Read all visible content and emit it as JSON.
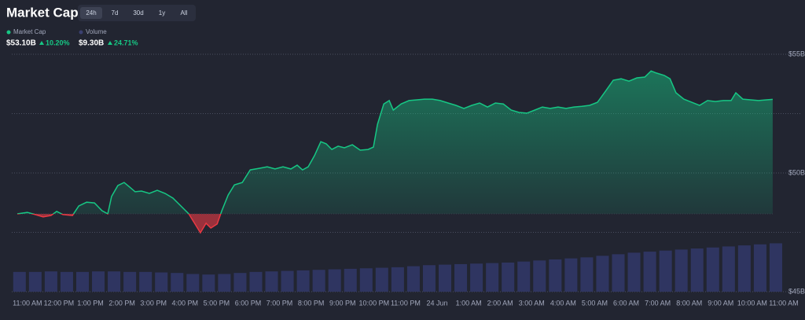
{
  "header": {
    "title": "Market Cap",
    "tabs": [
      "24h",
      "7d",
      "30d",
      "1y",
      "All"
    ],
    "legend": [
      {
        "label": "Market Cap",
        "value": "$53.10B",
        "change": "10.20%"
      },
      {
        "label": "Volume",
        "value": "$9.30B",
        "change": "24.71%"
      }
    ]
  },
  "chart_data": {
    "type": "area",
    "up_color": "#16c784",
    "down_color": "#ea3943",
    "grid": true,
    "series": [
      {
        "name": "Market Cap",
        "color": "#16c784",
        "x": [
          -0.32,
          0,
          0.25,
          0.5,
          0.75,
          0.93,
          1.13,
          1.43,
          1.63,
          1.88,
          2.13,
          2.37,
          2.55,
          2.67,
          2.87,
          3.07,
          3.25,
          3.42,
          3.62,
          3.87,
          4.12,
          4.37,
          4.62,
          4.87,
          5.12,
          5.32,
          5.49,
          5.67,
          5.82,
          6.02,
          6.17,
          6.37,
          6.57,
          6.82,
          7.07,
          7.37,
          7.61,
          7.86,
          8.11,
          8.36,
          8.56,
          8.73,
          8.91,
          9.11,
          9.31,
          9.48,
          9.66,
          9.86,
          10.06,
          10.31,
          10.56,
          10.81,
          10.98,
          11.11,
          11.31,
          11.48,
          11.61,
          11.86,
          12.11,
          12.36,
          12.6,
          12.85,
          13.1,
          13.35,
          13.6,
          13.85,
          14.1,
          14.35,
          14.6,
          14.85,
          15.1,
          15.35,
          15.6,
          15.85,
          16.1,
          16.34,
          16.59,
          16.84,
          17.09,
          17.34,
          17.59,
          17.84,
          18.09,
          18.34,
          18.59,
          18.84,
          19.09,
          19.34,
          19.59,
          19.79,
          19.96,
          20.21,
          20.39,
          20.58,
          20.83,
          21.08,
          21.33,
          21.58,
          21.83,
          22.08,
          22.33,
          22.48,
          22.7,
          22.95,
          23.2,
          23.45,
          23.65
        ],
        "values": [
          48.28,
          48.34,
          48.25,
          48.15,
          48.21,
          48.38,
          48.25,
          48.21,
          48.61,
          48.77,
          48.74,
          48.41,
          48.28,
          49.01,
          49.47,
          49.6,
          49.4,
          49.21,
          49.24,
          49.14,
          49.27,
          49.14,
          48.94,
          48.61,
          48.28,
          47.85,
          47.48,
          47.88,
          47.68,
          47.85,
          48.41,
          49.07,
          49.5,
          49.6,
          50.13,
          50.2,
          50.26,
          50.17,
          50.26,
          50.17,
          50.33,
          50.13,
          50.26,
          50.73,
          51.32,
          51.23,
          50.99,
          51.13,
          51.06,
          51.19,
          50.96,
          50.99,
          51.09,
          52.05,
          52.91,
          53.05,
          52.65,
          52.91,
          53.05,
          53.08,
          53.11,
          53.11,
          53.05,
          52.95,
          52.85,
          52.72,
          52.85,
          52.95,
          52.78,
          52.95,
          52.91,
          52.65,
          52.55,
          52.52,
          52.65,
          52.78,
          52.72,
          52.78,
          52.72,
          52.78,
          52.81,
          52.85,
          52.98,
          53.44,
          53.91,
          53.97,
          53.87,
          54.01,
          54.04,
          54.3,
          54.21,
          54.11,
          53.97,
          53.38,
          53.11,
          52.98,
          52.85,
          53.05,
          53.01,
          53.05,
          53.05,
          53.38,
          53.11,
          53.08,
          53.05,
          53.08,
          53.1
        ]
      },
      {
        "name": "Volume",
        "color": "#2f3561",
        "axis": "y2",
        "x": [
          -0.25,
          0.25,
          0.75,
          1.25,
          1.75,
          2.25,
          2.75,
          3.25,
          3.75,
          4.25,
          4.75,
          5.25,
          5.75,
          6.25,
          6.75,
          7.25,
          7.75,
          8.25,
          8.75,
          9.25,
          9.75,
          10.25,
          10.75,
          11.25,
          11.75,
          12.25,
          12.75,
          13.25,
          13.75,
          14.25,
          14.75,
          15.25,
          15.75,
          16.25,
          16.75,
          17.25,
          17.75,
          18.25,
          18.75,
          19.25,
          19.75,
          20.25,
          20.75,
          21.25,
          21.75,
          22.25,
          22.75,
          23.25,
          23.75
        ],
        "values": [
          3.8,
          3.8,
          3.9,
          3.8,
          3.8,
          3.9,
          3.9,
          3.8,
          3.8,
          3.7,
          3.6,
          3.4,
          3.3,
          3.4,
          3.6,
          3.8,
          3.9,
          4.0,
          4.1,
          4.2,
          4.3,
          4.4,
          4.5,
          4.6,
          4.7,
          4.9,
          5.1,
          5.2,
          5.3,
          5.4,
          5.5,
          5.6,
          5.8,
          6.0,
          6.2,
          6.4,
          6.6,
          6.9,
          7.2,
          7.5,
          7.7,
          7.9,
          8.1,
          8.3,
          8.5,
          8.7,
          8.9,
          9.1,
          9.3
        ]
      }
    ],
    "xlim": [
      -0.42,
      24.3
    ],
    "xticks": [
      {
        "value": 0,
        "label": "11:00 AM"
      },
      {
        "value": 1,
        "label": "12:00 PM"
      },
      {
        "value": 2,
        "label": "1:00 PM"
      },
      {
        "value": 3,
        "label": "2:00 PM"
      },
      {
        "value": 4,
        "label": "3:00 PM"
      },
      {
        "value": 5,
        "label": "4:00 PM"
      },
      {
        "value": 6,
        "label": "5:00 PM"
      },
      {
        "value": 7,
        "label": "6:00 PM"
      },
      {
        "value": 8,
        "label": "7:00 PM"
      },
      {
        "value": 9,
        "label": "8:00 PM"
      },
      {
        "value": 10,
        "label": "9:00 PM"
      },
      {
        "value": 11,
        "label": "10:00 PM"
      },
      {
        "value": 12,
        "label": "11:00 PM"
      },
      {
        "value": 13,
        "label": "24 Jun"
      },
      {
        "value": 14,
        "label": "1:00 AM"
      },
      {
        "value": 15,
        "label": "2:00 AM"
      },
      {
        "value": 16,
        "label": "3:00 AM"
      },
      {
        "value": 17,
        "label": "4:00 AM"
      },
      {
        "value": 18,
        "label": "5:00 AM"
      },
      {
        "value": 19,
        "label": "6:00 AM"
      },
      {
        "value": 20,
        "label": "7:00 AM"
      },
      {
        "value": 21,
        "label": "8:00 AM"
      },
      {
        "value": 22,
        "label": "9:00 AM"
      },
      {
        "value": 23,
        "label": "10:00 AM"
      },
      {
        "value": 24,
        "label": "11:00 AM"
      }
    ],
    "ylim": [
      45,
      55.3
    ],
    "yticks": [
      {
        "value": 55,
        "label": "$55B"
      },
      {
        "value": 52.5,
        "label": null
      },
      {
        "value": 50,
        "label": "$50B"
      },
      {
        "value": 47.5,
        "label": null
      },
      {
        "value": 45,
        "label": "$45B"
      }
    ],
    "y2lim": [
      0,
      47
    ]
  }
}
